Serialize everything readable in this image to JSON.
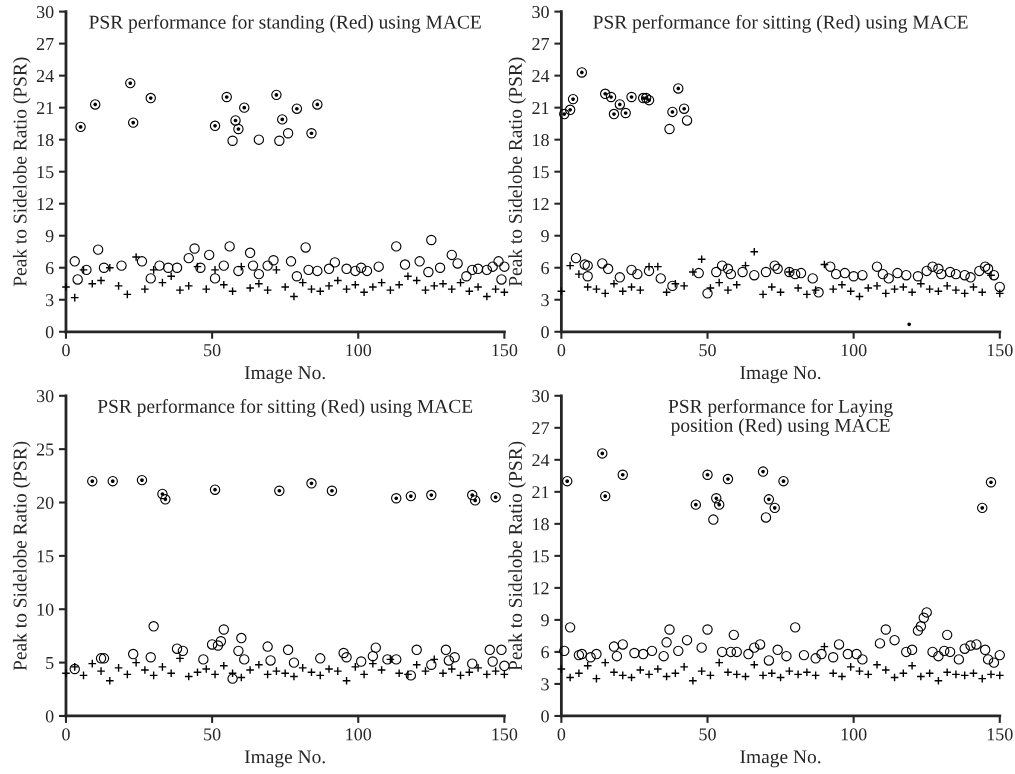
{
  "chart_data": [
    {
      "type": "scatter",
      "title": "PSR performance for standing (Red) using MACE",
      "xlabel": "Image No.",
      "ylabel": "Peak to Sidelobe Ratio (PSR)",
      "xlim": [
        0,
        150
      ],
      "xticks": [
        0,
        50,
        100,
        150
      ],
      "ylim": [
        0,
        30
      ],
      "yticks": [
        0,
        3,
        6,
        9,
        12,
        15,
        18,
        21,
        24,
        27,
        30
      ],
      "series": [
        {
          "color": "#000000",
          "marker": "circle",
          "x": [
            5,
            10,
            22,
            23,
            29,
            51,
            55,
            58,
            59,
            61,
            72,
            74,
            79,
            84,
            86,
            57,
            66,
            73,
            76,
            3,
            4,
            7,
            11,
            13,
            19,
            26,
            29,
            32,
            35,
            38,
            42,
            44,
            46,
            49,
            51,
            54,
            56,
            59,
            63,
            64,
            66,
            69,
            71,
            77,
            79,
            82,
            83,
            86,
            90,
            92,
            96,
            99,
            101,
            103,
            107,
            113,
            116,
            121,
            124,
            125,
            128,
            132,
            134,
            137,
            139,
            141,
            144,
            146,
            148,
            149,
            150
          ],
          "values": [
            19.2,
            21.3,
            23.3,
            19.6,
            21.9,
            19.3,
            22.0,
            19.8,
            19.0,
            21.0,
            22.2,
            19.9,
            20.9,
            18.6,
            21.3,
            17.9,
            18.0,
            17.9,
            18.6,
            6.6,
            4.9,
            5.8,
            7.7,
            6.0,
            6.2,
            6.6,
            5.0,
            6.2,
            6.0,
            6.0,
            6.9,
            7.8,
            6.0,
            7.2,
            5.0,
            6.2,
            8.0,
            5.7,
            7.4,
            6.2,
            5.4,
            6.2,
            6.7,
            6.6,
            5.2,
            7.9,
            5.8,
            5.7,
            5.9,
            6.5,
            5.9,
            5.7,
            6.0,
            5.7,
            6.1,
            8.0,
            6.3,
            6.6,
            5.6,
            8.6,
            6.0,
            7.2,
            6.4,
            5.2,
            5.8,
            5.9,
            5.8,
            6.1,
            6.6,
            4.9,
            6.1
          ]
        },
        {
          "color": "#000000",
          "marker": "cross",
          "x": [
            0,
            3,
            6,
            9,
            12,
            15,
            18,
            21,
            24,
            27,
            30,
            33,
            36,
            39,
            42,
            45,
            48,
            51,
            54,
            57,
            60,
            63,
            66,
            69,
            72,
            75,
            78,
            81,
            84,
            87,
            90,
            93,
            96,
            99,
            102,
            105,
            108,
            111,
            114,
            117,
            120,
            123,
            126,
            129,
            132,
            135,
            138,
            141,
            144,
            147,
            150
          ],
          "values": [
            4.2,
            3.2,
            5.8,
            4.5,
            4.8,
            6.0,
            4.3,
            3.5,
            7.0,
            4.0,
            5.8,
            4.6,
            5.2,
            3.9,
            4.3,
            6.1,
            4.0,
            5.8,
            4.4,
            3.8,
            6.1,
            4.1,
            4.5,
            3.9,
            5.8,
            4.2,
            3.3,
            4.6,
            4.0,
            3.8,
            4.3,
            4.8,
            4.0,
            4.4,
            3.7,
            4.2,
            4.6,
            3.9,
            4.4,
            5.2,
            4.8,
            3.9,
            4.3,
            4.5,
            4.0,
            4.6,
            3.8,
            4.2,
            3.3,
            4.0,
            3.7
          ]
        },
        {
          "color": "#000000",
          "marker": "point",
          "x": [
            5,
            10,
            22,
            23,
            29,
            51,
            55,
            58,
            59,
            61,
            72,
            74,
            79,
            84,
            86
          ],
          "values": [
            19.2,
            21.3,
            23.3,
            19.6,
            21.9,
            19.3,
            22.0,
            19.8,
            19.0,
            21.0,
            22.2,
            19.9,
            20.9,
            18.6,
            21.3
          ]
        }
      ]
    },
    {
      "type": "scatter",
      "title": "PSR performance for sitting (Red) using MACE",
      "xlabel": "Image No.",
      "ylabel": "Peak to Sidelobe Ratio (PSR)",
      "xlim": [
        0,
        150
      ],
      "xticks": [
        0,
        50,
        100,
        150
      ],
      "ylim": [
        0,
        30
      ],
      "yticks": [
        0,
        3,
        6,
        9,
        12,
        15,
        18,
        21,
        24,
        27,
        30
      ],
      "series": [
        {
          "color": "#000000",
          "marker": "circle",
          "x": [
            1,
            3,
            4,
            7,
            15,
            17,
            18,
            20,
            22,
            24,
            28,
            29,
            30,
            38,
            40,
            42,
            37,
            43,
            5,
            8,
            9,
            9,
            14,
            16,
            20,
            24,
            26,
            30,
            34,
            38,
            47,
            50,
            53,
            55,
            57,
            58,
            62,
            66,
            70,
            73,
            74,
            78,
            80,
            82,
            86,
            88,
            92,
            94,
            97,
            100,
            103,
            108,
            110,
            112,
            115,
            118,
            122,
            125,
            127,
            129,
            130,
            133,
            135,
            138,
            140,
            143,
            145,
            146,
            148,
            150
          ],
          "values": [
            20.4,
            20.8,
            21.8,
            24.3,
            22.3,
            22.0,
            20.4,
            21.3,
            20.5,
            22.0,
            21.9,
            21.9,
            21.7,
            20.6,
            22.8,
            20.9,
            19.0,
            19.8,
            6.9,
            6.3,
            6.2,
            5.2,
            6.4,
            5.9,
            5.1,
            5.8,
            5.4,
            5.7,
            5.0,
            4.3,
            5.5,
            3.6,
            5.6,
            6.2,
            5.9,
            5.4,
            5.6,
            5.3,
            5.6,
            6.2,
            5.9,
            5.6,
            5.4,
            5.5,
            5.0,
            3.7,
            6.1,
            5.4,
            5.5,
            5.2,
            5.3,
            6.1,
            5.4,
            5.0,
            5.5,
            5.3,
            5.2,
            5.7,
            6.1,
            5.9,
            5.4,
            5.6,
            5.4,
            5.3,
            5.1,
            5.7,
            6.1,
            5.9,
            5.3,
            4.2
          ]
        },
        {
          "color": "#000000",
          "marker": "cross",
          "x": [
            0,
            3,
            6,
            9,
            12,
            15,
            18,
            21,
            24,
            27,
            30,
            33,
            36,
            39,
            42,
            45,
            48,
            51,
            54,
            57,
            60,
            63,
            66,
            69,
            72,
            75,
            78,
            81,
            84,
            87,
            90,
            93,
            96,
            99,
            102,
            105,
            108,
            111,
            114,
            117,
            120,
            123,
            126,
            129,
            132,
            135,
            138,
            141,
            144,
            147,
            150
          ],
          "values": [
            3.8,
            6.2,
            5.4,
            4.2,
            4.0,
            3.6,
            4.5,
            3.8,
            4.2,
            3.9,
            6.1,
            6.1,
            3.7,
            4.5,
            4.3,
            5.6,
            6.8,
            4.1,
            4.6,
            3.9,
            4.4,
            6.2,
            7.5,
            3.5,
            4.2,
            3.7,
            5.6,
            4.1,
            3.5,
            3.9,
            6.3,
            4.0,
            4.4,
            3.8,
            3.3,
            4.1,
            4.3,
            3.6,
            4.0,
            4.2,
            3.7,
            4.5,
            4.0,
            3.8,
            4.3,
            3.9,
            3.6,
            4.2,
            3.7,
            5.3,
            3.6
          ]
        },
        {
          "color": "#000000",
          "marker": "point",
          "x": [
            1,
            3,
            4,
            7,
            15,
            17,
            18,
            20,
            22,
            24,
            28,
            29,
            30,
            38,
            40,
            42,
            119
          ],
          "values": [
            20.4,
            20.8,
            21.8,
            24.3,
            22.3,
            22.0,
            20.4,
            21.3,
            20.5,
            22.0,
            21.9,
            21.9,
            21.7,
            20.6,
            22.8,
            20.9,
            0.7
          ]
        }
      ]
    },
    {
      "type": "scatter",
      "title": "PSR performance for sitting (Red) using MACE",
      "xlabel": "Image No.",
      "ylabel": "Peak to Sidelobe Ratio (PSR)",
      "xlim": [
        0,
        150
      ],
      "xticks": [
        0,
        50,
        100,
        150
      ],
      "ylim": [
        0,
        30
      ],
      "yticks": [
        0,
        5,
        10,
        15,
        20,
        25,
        30
      ],
      "series": [
        {
          "color": "#000000",
          "marker": "circle",
          "x": [
            9,
            16,
            26,
            33,
            34,
            51,
            73,
            84,
            91,
            113,
            118,
            125,
            139,
            140,
            147,
            3,
            12,
            13,
            23,
            29,
            30,
            38,
            40,
            47,
            50,
            52,
            53,
            54,
            57,
            59,
            60,
            61,
            69,
            70,
            76,
            78,
            87,
            95,
            96,
            101,
            105,
            106,
            110,
            113,
            118,
            120,
            125,
            130,
            131,
            133,
            139,
            145,
            146,
            149,
            150
          ],
          "values": [
            22.0,
            22.0,
            22.1,
            20.8,
            20.3,
            21.2,
            21.1,
            21.8,
            21.1,
            20.4,
            20.6,
            20.7,
            20.7,
            20.2,
            20.5,
            4.4,
            5.4,
            5.4,
            5.8,
            5.5,
            8.4,
            6.3,
            6.1,
            5.3,
            6.7,
            6.6,
            7.0,
            8.1,
            3.5,
            6.1,
            7.3,
            5.3,
            6.5,
            5.2,
            6.2,
            5.0,
            5.4,
            5.9,
            5.5,
            5.1,
            5.6,
            6.4,
            5.3,
            5.3,
            3.8,
            6.2,
            4.8,
            6.2,
            5.2,
            5.5,
            4.9,
            6.2,
            5.1,
            6.2,
            4.7
          ]
        },
        {
          "color": "#000000",
          "marker": "cross",
          "x": [
            0,
            3,
            6,
            9,
            12,
            15,
            18,
            21,
            24,
            27,
            30,
            33,
            36,
            39,
            42,
            45,
            48,
            51,
            54,
            57,
            60,
            63,
            66,
            69,
            72,
            75,
            78,
            81,
            84,
            87,
            90,
            93,
            96,
            99,
            102,
            105,
            108,
            111,
            114,
            117,
            120,
            123,
            126,
            129,
            132,
            135,
            138,
            141,
            144,
            147,
            150
          ],
          "values": [
            4.0,
            4.6,
            3.8,
            4.9,
            4.2,
            3.3,
            4.5,
            3.9,
            5.0,
            4.3,
            3.8,
            4.6,
            4.0,
            5.4,
            3.7,
            4.1,
            4.4,
            3.9,
            4.7,
            4.0,
            3.6,
            4.3,
            4.8,
            3.9,
            4.2,
            4.0,
            3.7,
            4.5,
            4.1,
            3.8,
            4.4,
            4.2,
            3.3,
            4.6,
            3.9,
            4.9,
            4.3,
            5.3,
            4.0,
            3.9,
            4.8,
            4.2,
            5.3,
            4.0,
            4.4,
            3.8,
            4.1,
            4.5,
            3.9,
            4.2,
            3.9
          ]
        },
        {
          "color": "#000000",
          "marker": "point",
          "x": [
            9,
            16,
            26,
            33,
            34,
            51,
            73,
            84,
            91,
            113,
            118,
            125,
            139,
            140,
            147
          ],
          "values": [
            22.0,
            22.0,
            22.1,
            20.8,
            20.3,
            21.2,
            21.1,
            21.8,
            21.1,
            20.4,
            20.6,
            20.7,
            20.7,
            20.2,
            20.5
          ]
        }
      ]
    },
    {
      "type": "scatter",
      "title": "PSR performance for Laying\nposition (Red) using MACE",
      "xlabel": "Image No.",
      "ylabel": "Peak to Sidelobe Ratio (PSR)",
      "xlim": [
        0,
        150
      ],
      "xticks": [
        0,
        50,
        100,
        150
      ],
      "ylim": [
        0,
        30
      ],
      "yticks": [
        0,
        3,
        6,
        9,
        12,
        15,
        18,
        21,
        24,
        27,
        30
      ],
      "series": [
        {
          "color": "#000000",
          "marker": "circle",
          "x": [
            2,
            14,
            15,
            21,
            46,
            50,
            53,
            54,
            57,
            69,
            71,
            73,
            76,
            144,
            147,
            52,
            70,
            1,
            3,
            6,
            7,
            10,
            12,
            18,
            19,
            21,
            25,
            28,
            31,
            35,
            36,
            37,
            40,
            43,
            48,
            50,
            55,
            58,
            59,
            60,
            64,
            66,
            68,
            71,
            74,
            77,
            80,
            83,
            87,
            89,
            93,
            95,
            98,
            101,
            103,
            109,
            111,
            114,
            118,
            120,
            122,
            123,
            124,
            125,
            127,
            129,
            131,
            132,
            133,
            136,
            138,
            140,
            142,
            145,
            146,
            148,
            150
          ],
          "values": [
            22.0,
            24.6,
            20.6,
            22.6,
            19.8,
            22.6,
            20.4,
            19.8,
            22.2,
            22.9,
            20.3,
            19.5,
            22.0,
            19.5,
            21.9,
            18.4,
            18.6,
            6.1,
            8.3,
            5.7,
            5.8,
            5.5,
            5.8,
            6.5,
            5.6,
            6.7,
            5.9,
            5.8,
            6.1,
            5.6,
            6.9,
            8.1,
            6.1,
            7.1,
            6.4,
            8.1,
            6.0,
            6.0,
            7.6,
            6.0,
            5.8,
            6.4,
            6.7,
            5.2,
            6.2,
            5.6,
            8.3,
            5.7,
            5.4,
            5.8,
            5.5,
            6.7,
            5.8,
            5.8,
            5.3,
            6.8,
            8.1,
            7.1,
            6.0,
            6.2,
            8.0,
            8.4,
            9.2,
            9.7,
            6.0,
            5.6,
            6.1,
            7.6,
            6.0,
            5.3,
            6.3,
            6.6,
            6.7,
            6.2,
            5.3,
            5.0,
            5.7
          ]
        },
        {
          "color": "#000000",
          "marker": "cross",
          "x": [
            0,
            3,
            6,
            9,
            12,
            15,
            18,
            21,
            24,
            27,
            30,
            33,
            36,
            39,
            42,
            45,
            48,
            51,
            54,
            57,
            60,
            63,
            66,
            69,
            72,
            75,
            78,
            81,
            84,
            87,
            90,
            93,
            96,
            99,
            102,
            105,
            108,
            111,
            114,
            117,
            120,
            123,
            126,
            129,
            132,
            135,
            138,
            141,
            144,
            147,
            150
          ],
          "values": [
            4.4,
            3.6,
            4.0,
            4.7,
            3.5,
            5.0,
            4.1,
            3.8,
            3.6,
            4.3,
            3.9,
            4.4,
            3.7,
            4.0,
            4.6,
            3.3,
            4.2,
            3.8,
            5.0,
            4.1,
            3.9,
            3.7,
            4.8,
            3.8,
            4.0,
            3.6,
            4.2,
            3.9,
            4.1,
            3.8,
            6.5,
            4.0,
            3.7,
            4.6,
            4.2,
            3.9,
            4.8,
            4.3,
            3.6,
            4.0,
            4.7,
            3.7,
            4.0,
            3.3,
            4.1,
            3.9,
            3.8,
            4.0,
            3.5,
            3.9,
            3.8
          ]
        },
        {
          "color": "#000000",
          "marker": "point",
          "x": [
            2,
            14,
            15,
            21,
            46,
            50,
            53,
            54,
            57,
            69,
            71,
            73,
            76,
            144,
            147
          ],
          "values": [
            22.0,
            24.6,
            20.6,
            22.6,
            19.8,
            22.6,
            20.4,
            19.8,
            22.2,
            22.9,
            20.3,
            19.5,
            22.0,
            19.5,
            21.9
          ]
        }
      ]
    }
  ]
}
